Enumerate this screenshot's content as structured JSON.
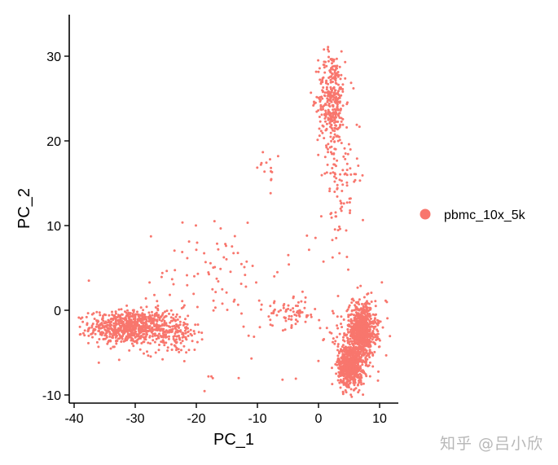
{
  "chart_data": {
    "type": "scatter",
    "title": "",
    "xlabel": "PC_1",
    "ylabel": "PC_2",
    "xlim": [
      -41,
      13
    ],
    "ylim": [
      -11,
      35
    ],
    "xticks": [
      -40,
      -30,
      -20,
      -10,
      0,
      10
    ],
    "yticks": [
      -10,
      0,
      10,
      20,
      30
    ],
    "xtick_labels": [
      "-40",
      "-30",
      "-20",
      "-10",
      "0",
      "10"
    ],
    "ytick_labels": [
      "-10",
      "0",
      "10",
      "20",
      "30"
    ],
    "grid": false,
    "legend_position": "right",
    "series": [
      {
        "name": "pbmc_10x_5k",
        "color": "#F8766D",
        "clusters": [
          {
            "cx": -31,
            "cy": -2,
            "sx": 3.2,
            "sy": 1.0,
            "n": 700
          },
          {
            "cx": -24,
            "cy": -2.6,
            "sx": 2.2,
            "sy": 1.3,
            "n": 160
          },
          {
            "cx": -16,
            "cy": 4.5,
            "sx": 5,
            "sy": 3.2,
            "n": 70
          },
          {
            "cx": 2.2,
            "cy": 25,
            "sx": 1.1,
            "sy": 2.8,
            "n": 330
          },
          {
            "cx": 3.6,
            "cy": 16,
            "sx": 1.6,
            "sy": 4.2,
            "n": 110
          },
          {
            "cx": -4.5,
            "cy": -0.4,
            "sx": 2.2,
            "sy": 0.8,
            "n": 70
          },
          {
            "cx": -8,
            "cy": 17,
            "sx": 1.0,
            "sy": 1.1,
            "n": 12
          },
          {
            "cx": 5.2,
            "cy": -6.5,
            "sx": 1.0,
            "sy": 1.2,
            "n": 650
          },
          {
            "cx": 7.2,
            "cy": -2.3,
            "sx": 1.1,
            "sy": 1.5,
            "n": 650
          },
          {
            "cx": 6.0,
            "cy": -3.5,
            "sx": 2.4,
            "sy": 2.4,
            "n": 160
          },
          {
            "cx": -15,
            "cy": -1,
            "sx": 10,
            "sy": 6,
            "n": 40
          }
        ]
      }
    ]
  },
  "watermark": "知乎 @吕小欣"
}
